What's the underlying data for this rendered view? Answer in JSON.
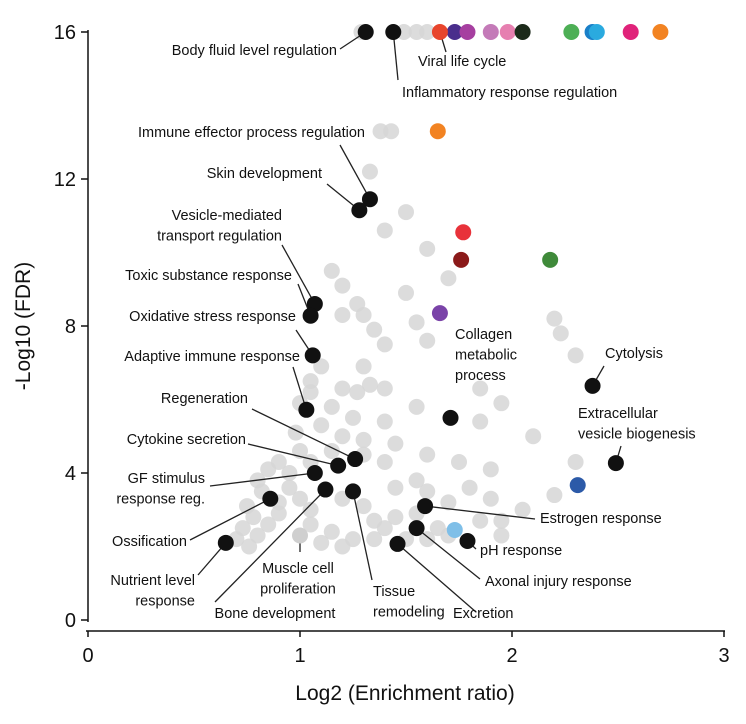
{
  "chart_data": {
    "type": "scatter",
    "xlabel": "Log2 (Enrichment ratio)",
    "ylabel": "-Log10 (FDR)",
    "xlim": [
      0,
      3
    ],
    "ylim": [
      0,
      16
    ],
    "xticks": [
      "0",
      "1",
      "2",
      "3"
    ],
    "yticks": [
      "0",
      "4",
      "8",
      "12",
      "16"
    ],
    "grid": false,
    "colors": {
      "background_point": "#d6d6d6",
      "highlight_point": "#111111"
    },
    "labeled_points": [
      {
        "label": [
          "Body fluid level regulation"
        ],
        "x": 1.31,
        "y": 16,
        "color": "#111111"
      },
      {
        "label": [
          "Inflammatory response regulation"
        ],
        "x": 1.44,
        "y": 16,
        "color": "#111111"
      },
      {
        "label": [
          "Viral life cycle"
        ],
        "x": 1.66,
        "y": 16,
        "color": "#e8452c"
      },
      {
        "label": [
          "Immune effector process regulation"
        ],
        "x": 1.33,
        "y": 11.45,
        "color": "#111111"
      },
      {
        "label": [
          "Skin development"
        ],
        "x": 1.28,
        "y": 11.15,
        "color": "#111111"
      },
      {
        "label": [
          "Vesicle-mediated",
          "transport regulation"
        ],
        "x": 1.07,
        "y": 8.6,
        "color": "#111111"
      },
      {
        "label": [
          "Toxic substance response"
        ],
        "x": 1.05,
        "y": 8.28,
        "color": "#111111"
      },
      {
        "label": [
          "Oxidative stress response"
        ],
        "x": 1.06,
        "y": 7.2,
        "color": "#111111"
      },
      {
        "label": [
          "Adaptive immune response"
        ],
        "x": 1.03,
        "y": 5.72,
        "color": "#111111"
      },
      {
        "label": [
          "Regeneration"
        ],
        "x": 1.26,
        "y": 4.38,
        "color": "#111111"
      },
      {
        "label": [
          "Cytokine secretion"
        ],
        "x": 1.18,
        "y": 4.2,
        "color": "#111111"
      },
      {
        "label": [
          "GF stimulus",
          "response reg."
        ],
        "x": 1.07,
        "y": 4.0,
        "color": "#111111"
      },
      {
        "label": [
          "Ossification"
        ],
        "x": 0.86,
        "y": 3.3,
        "color": "#111111"
      },
      {
        "label": [
          "Nutrient level",
          "response"
        ],
        "x": 0.65,
        "y": 2.1,
        "color": "#111111"
      },
      {
        "label": [
          "Muscle cell",
          "proliferation"
        ],
        "x": 1.0,
        "y": 2.3,
        "color": "#cfcfcf"
      },
      {
        "label": [
          "Bone development"
        ],
        "x": 1.12,
        "y": 3.55,
        "color": "#111111"
      },
      {
        "label": [
          "Tissue",
          "remodeling"
        ],
        "x": 1.25,
        "y": 3.5,
        "color": "#111111"
      },
      {
        "label": [
          "Excretion"
        ],
        "x": 1.46,
        "y": 2.07,
        "color": "#111111"
      },
      {
        "label": [
          "Axonal injury response"
        ],
        "x": 1.55,
        "y": 2.5,
        "color": "#111111"
      },
      {
        "label": [
          "pH response"
        ],
        "x": 1.79,
        "y": 2.15,
        "color": "#111111"
      },
      {
        "label": [
          "Estrogen response"
        ],
        "x": 1.59,
        "y": 3.1,
        "color": "#111111"
      },
      {
        "label": [
          "Collagen",
          "metabolic",
          "process"
        ],
        "x": 1.71,
        "y": 5.5,
        "color": "#111111"
      },
      {
        "label": [
          "Cytolysis"
        ],
        "x": 2.38,
        "y": 6.37,
        "color": "#111111"
      },
      {
        "label": [
          "Extracellular",
          "vesicle biogenesis"
        ],
        "x": 2.49,
        "y": 4.27,
        "color": "#111111"
      }
    ],
    "colored_points": [
      {
        "x": 1.73,
        "y": 16,
        "color": "#4a2e8c"
      },
      {
        "x": 1.79,
        "y": 16,
        "color": "#a63fa0"
      },
      {
        "x": 1.9,
        "y": 16,
        "color": "#c47ab8"
      },
      {
        "x": 1.98,
        "y": 16,
        "color": "#e67fb0"
      },
      {
        "x": 2.05,
        "y": 16,
        "color": "#1c2a1a"
      },
      {
        "x": 2.28,
        "y": 16,
        "color": "#4daf55"
      },
      {
        "x": 2.38,
        "y": 16,
        "color": "#1a7fc8"
      },
      {
        "x": 2.4,
        "y": 16,
        "color": "#2aaadf"
      },
      {
        "x": 2.56,
        "y": 16,
        "color": "#e0237a"
      },
      {
        "x": 2.7,
        "y": 16,
        "color": "#f28322"
      },
      {
        "x": 1.65,
        "y": 13.3,
        "color": "#f28322"
      },
      {
        "x": 1.77,
        "y": 10.55,
        "color": "#e8323a"
      },
      {
        "x": 1.76,
        "y": 9.8,
        "color": "#8b1a1a"
      },
      {
        "x": 2.18,
        "y": 9.8,
        "color": "#3f8a3a"
      },
      {
        "x": 1.66,
        "y": 8.35,
        "color": "#7a43a8"
      },
      {
        "x": 2.31,
        "y": 3.67,
        "color": "#2c5aa8"
      },
      {
        "x": 1.73,
        "y": 2.45,
        "color": "#7fbfe8"
      }
    ],
    "background_points": [
      [
        1.29,
        16
      ],
      [
        1.49,
        16
      ],
      [
        1.55,
        16
      ],
      [
        1.6,
        16
      ],
      [
        1.38,
        13.3
      ],
      [
        1.43,
        13.3
      ],
      [
        1.33,
        12.2
      ],
      [
        1.5,
        11.1
      ],
      [
        1.4,
        10.6
      ],
      [
        1.6,
        10.1
      ],
      [
        1.7,
        9.3
      ],
      [
        1.15,
        9.5
      ],
      [
        1.2,
        9.1
      ],
      [
        1.5,
        8.9
      ],
      [
        1.27,
        8.6
      ],
      [
        1.3,
        8.3
      ],
      [
        1.55,
        8.1
      ],
      [
        1.2,
        8.3
      ],
      [
        1.35,
        7.9
      ],
      [
        1.4,
        7.5
      ],
      [
        1.6,
        7.6
      ],
      [
        2.2,
        8.2
      ],
      [
        2.23,
        7.8
      ],
      [
        2.3,
        7.2
      ],
      [
        1.3,
        6.9
      ],
      [
        1.1,
        6.9
      ],
      [
        1.05,
        6.5
      ],
      [
        1.2,
        6.3
      ],
      [
        1.27,
        6.2
      ],
      [
        1.33,
        6.4
      ],
      [
        1.4,
        6.3
      ],
      [
        1.85,
        6.3
      ],
      [
        1.05,
        6.2
      ],
      [
        1.0,
        5.9
      ],
      [
        1.15,
        5.8
      ],
      [
        1.25,
        5.5
      ],
      [
        1.4,
        5.4
      ],
      [
        1.55,
        5.8
      ],
      [
        1.85,
        5.4
      ],
      [
        1.95,
        5.9
      ],
      [
        2.1,
        5.0
      ],
      [
        1.1,
        5.3
      ],
      [
        1.2,
        5.0
      ],
      [
        1.3,
        4.9
      ],
      [
        1.45,
        4.8
      ],
      [
        0.98,
        5.1
      ],
      [
        1.0,
        4.6
      ],
      [
        0.9,
        4.3
      ],
      [
        0.85,
        4.1
      ],
      [
        0.95,
        4.0
      ],
      [
        1.05,
        4.3
      ],
      [
        1.15,
        4.6
      ],
      [
        1.3,
        4.5
      ],
      [
        1.4,
        4.3
      ],
      [
        1.6,
        4.5
      ],
      [
        1.75,
        4.3
      ],
      [
        1.9,
        4.1
      ],
      [
        2.3,
        4.3
      ],
      [
        2.2,
        3.4
      ],
      [
        0.8,
        3.8
      ],
      [
        0.82,
        3.5
      ],
      [
        0.9,
        3.2
      ],
      [
        0.75,
        3.1
      ],
      [
        0.78,
        2.8
      ],
      [
        0.73,
        2.5
      ],
      [
        0.8,
        2.3
      ],
      [
        0.85,
        2.6
      ],
      [
        0.9,
        2.9
      ],
      [
        0.95,
        3.6
      ],
      [
        1.0,
        3.3
      ],
      [
        1.05,
        3.0
      ],
      [
        0.7,
        2.2
      ],
      [
        0.76,
        2.0
      ],
      [
        1.2,
        3.3
      ],
      [
        1.3,
        3.1
      ],
      [
        1.35,
        2.7
      ],
      [
        1.25,
        2.2
      ],
      [
        1.15,
        2.4
      ],
      [
        1.05,
        2.6
      ],
      [
        1.45,
        3.6
      ],
      [
        1.55,
        3.8
      ],
      [
        1.6,
        3.5
      ],
      [
        1.7,
        3.2
      ],
      [
        1.8,
        3.6
      ],
      [
        1.9,
        3.3
      ],
      [
        1.45,
        2.8
      ],
      [
        1.5,
        2.2
      ],
      [
        1.55,
        2.9
      ],
      [
        1.65,
        2.5
      ],
      [
        1.6,
        2.2
      ],
      [
        1.7,
        2.3
      ],
      [
        1.85,
        2.7
      ],
      [
        1.95,
        2.7
      ],
      [
        1.95,
        2.3
      ],
      [
        2.05,
        3.0
      ],
      [
        1.35,
        2.2
      ],
      [
        1.4,
        2.5
      ],
      [
        1.1,
        2.1
      ],
      [
        1.2,
        2.0
      ]
    ]
  }
}
